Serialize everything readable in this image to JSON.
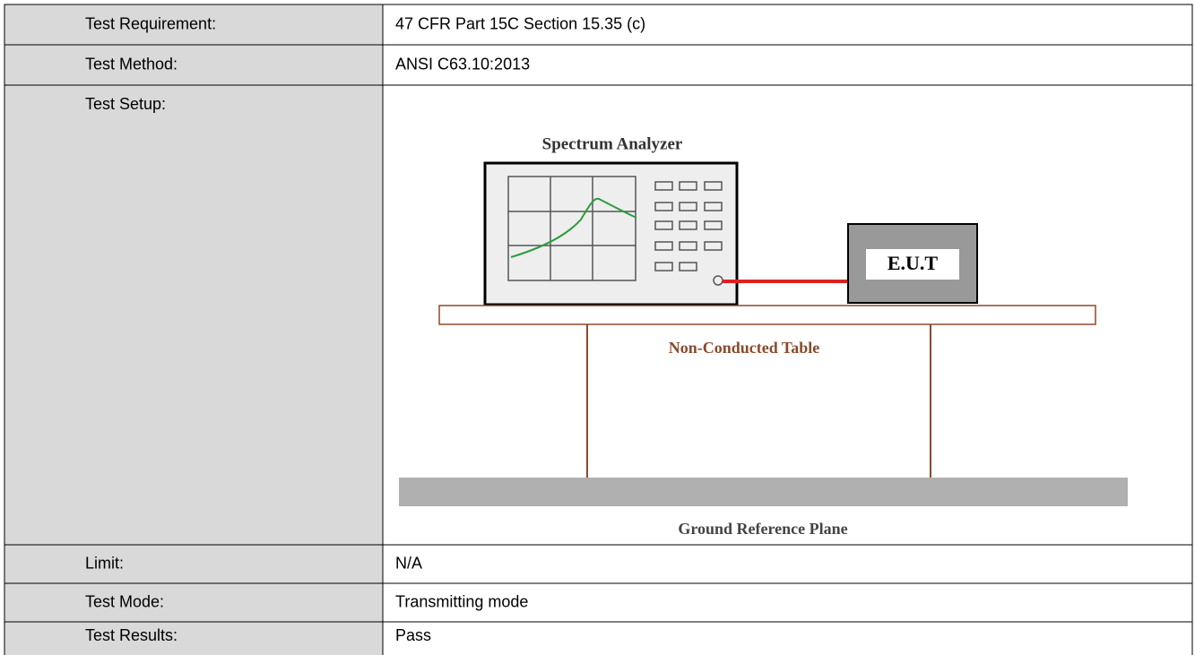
{
  "table": {
    "rows": [
      [
        "Test Requirement:",
        "47 CFR Part 15C Section 15.35 (c)"
      ],
      [
        "Test Method:",
        "ANSI C63.10:2013"
      ],
      [
        "Test Setup:",
        null
      ],
      [
        "Limit:",
        "N/A"
      ],
      [
        "Test Mode:",
        "Transmitting mode"
      ],
      [
        "Test Results:",
        "Pass"
      ]
    ]
  },
  "diagram": {
    "analyzer_label": "Spectrum Analyzer",
    "eut_label": "E.U.T",
    "table_label": "Non-Conducted Table",
    "ground_label": "Ground Reference Plane"
  }
}
